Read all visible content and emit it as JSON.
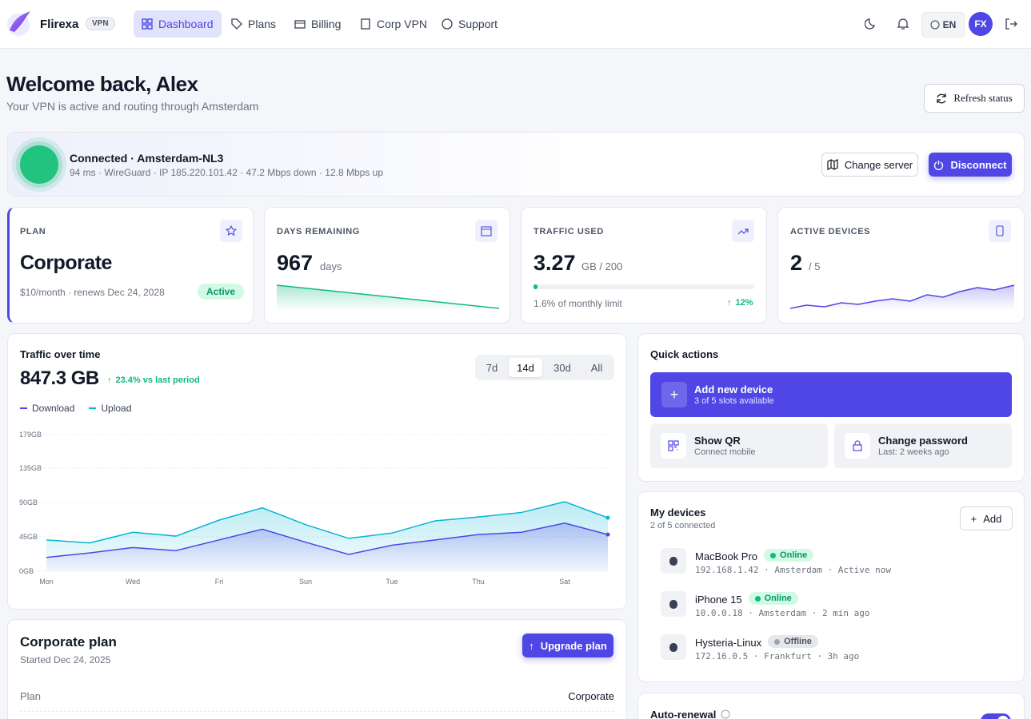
{
  "nav": {
    "brand": "Flirexa",
    "badge": "VPN",
    "items": [
      "Dashboard",
      "Plans",
      "Billing",
      "Corp VPN",
      "Support"
    ],
    "lang": "EN",
    "avatar": "FX"
  },
  "header": {
    "title": "Welcome back, Alex",
    "subtitle": "Your VPN is active and routing through Amsterdam",
    "refresh": "Refresh status"
  },
  "connection": {
    "title": "Connected · Amsterdam-NL3",
    "details": "94 ms · WireGuard · IP 185.220.101.42 · 47.2 Mbps down · 12.8 Mbps up",
    "change": "Change server",
    "disconnect": "Disconnect"
  },
  "stats": [
    {
      "label": "PLAN",
      "value": "Corporate",
      "note": "$10/month · renews Dec 24, 2028",
      "badge": "Active"
    },
    {
      "label": "DAYS REMAINING",
      "value": "967",
      "unit": "days"
    },
    {
      "label": "TRAFFIC USED",
      "value": "3.27",
      "unit": "GB / 200",
      "note": "1.6% of monthly limit",
      "change": "12%"
    },
    {
      "label": "ACTIVE DEVICES",
      "value": "2",
      "unit": "/ 5"
    }
  ],
  "traffic": {
    "total": "847.3 GB",
    "change": "23.4% vs last period",
    "ranges": [
      "7d",
      "14d",
      "30d",
      "All"
    ]
  },
  "chart_data": {
    "type": "line",
    "title": "Traffic over time",
    "categories": [
      "Mon",
      null,
      "Wed",
      null,
      "Fri",
      null,
      "Sun",
      null,
      "Tue",
      null,
      "Thu",
      null,
      "Sat",
      null
    ],
    "series": [
      {
        "name": "Download",
        "color": "#4f46e5",
        "values": [
          18,
          24,
          31,
          27,
          41,
          55,
          38,
          22,
          34,
          41,
          48,
          51,
          63,
          48
        ]
      },
      {
        "name": "Upload",
        "color": "#06b6d4",
        "values": [
          41,
          37,
          51,
          46,
          67,
          83,
          61,
          43,
          50,
          66,
          71,
          77,
          91,
          70
        ]
      }
    ],
    "ylim": [
      0,
      179
    ],
    "yticks": [
      {
        "value": 0,
        "label": "0GB"
      },
      {
        "value": 45,
        "label": "45GB"
      },
      {
        "value": 90,
        "label": "90GB"
      },
      {
        "value": 135,
        "label": "135GB"
      },
      {
        "value": 179,
        "label": "179GB"
      }
    ],
    "grid": true
  },
  "quick_actions": {
    "title": "Quick actions",
    "items": [
      {
        "title": "Add new device",
        "sub": "3 of 5 slots available"
      },
      {
        "title": "Show QR",
        "sub": "Connect mobile"
      },
      {
        "title": "Change password",
        "sub": "Last: 2 weeks ago"
      }
    ]
  },
  "devices": {
    "title": "My devices",
    "sub": "2 of 5 connected",
    "add": "Add",
    "list": [
      {
        "name": "MacBook Pro",
        "status": "Online",
        "meta": "192.168.1.42 · Amsterdam · Active now"
      },
      {
        "name": "iPhone 15",
        "status": "Online",
        "meta": "10.0.0.18 · Amsterdam · 2 min ago"
      },
      {
        "name": "Hysteria-Linux",
        "status": "Offline",
        "meta": "172.16.0.5 · Frankfurt · 3h ago"
      }
    ]
  },
  "plan": {
    "title": "Corporate plan",
    "sub": "Started Dec 24, 2025",
    "button": "Upgrade plan",
    "rows": [
      [
        "Plan",
        "Corporate"
      ]
    ]
  },
  "auto_renewal": {
    "title": "Auto-renewal"
  }
}
